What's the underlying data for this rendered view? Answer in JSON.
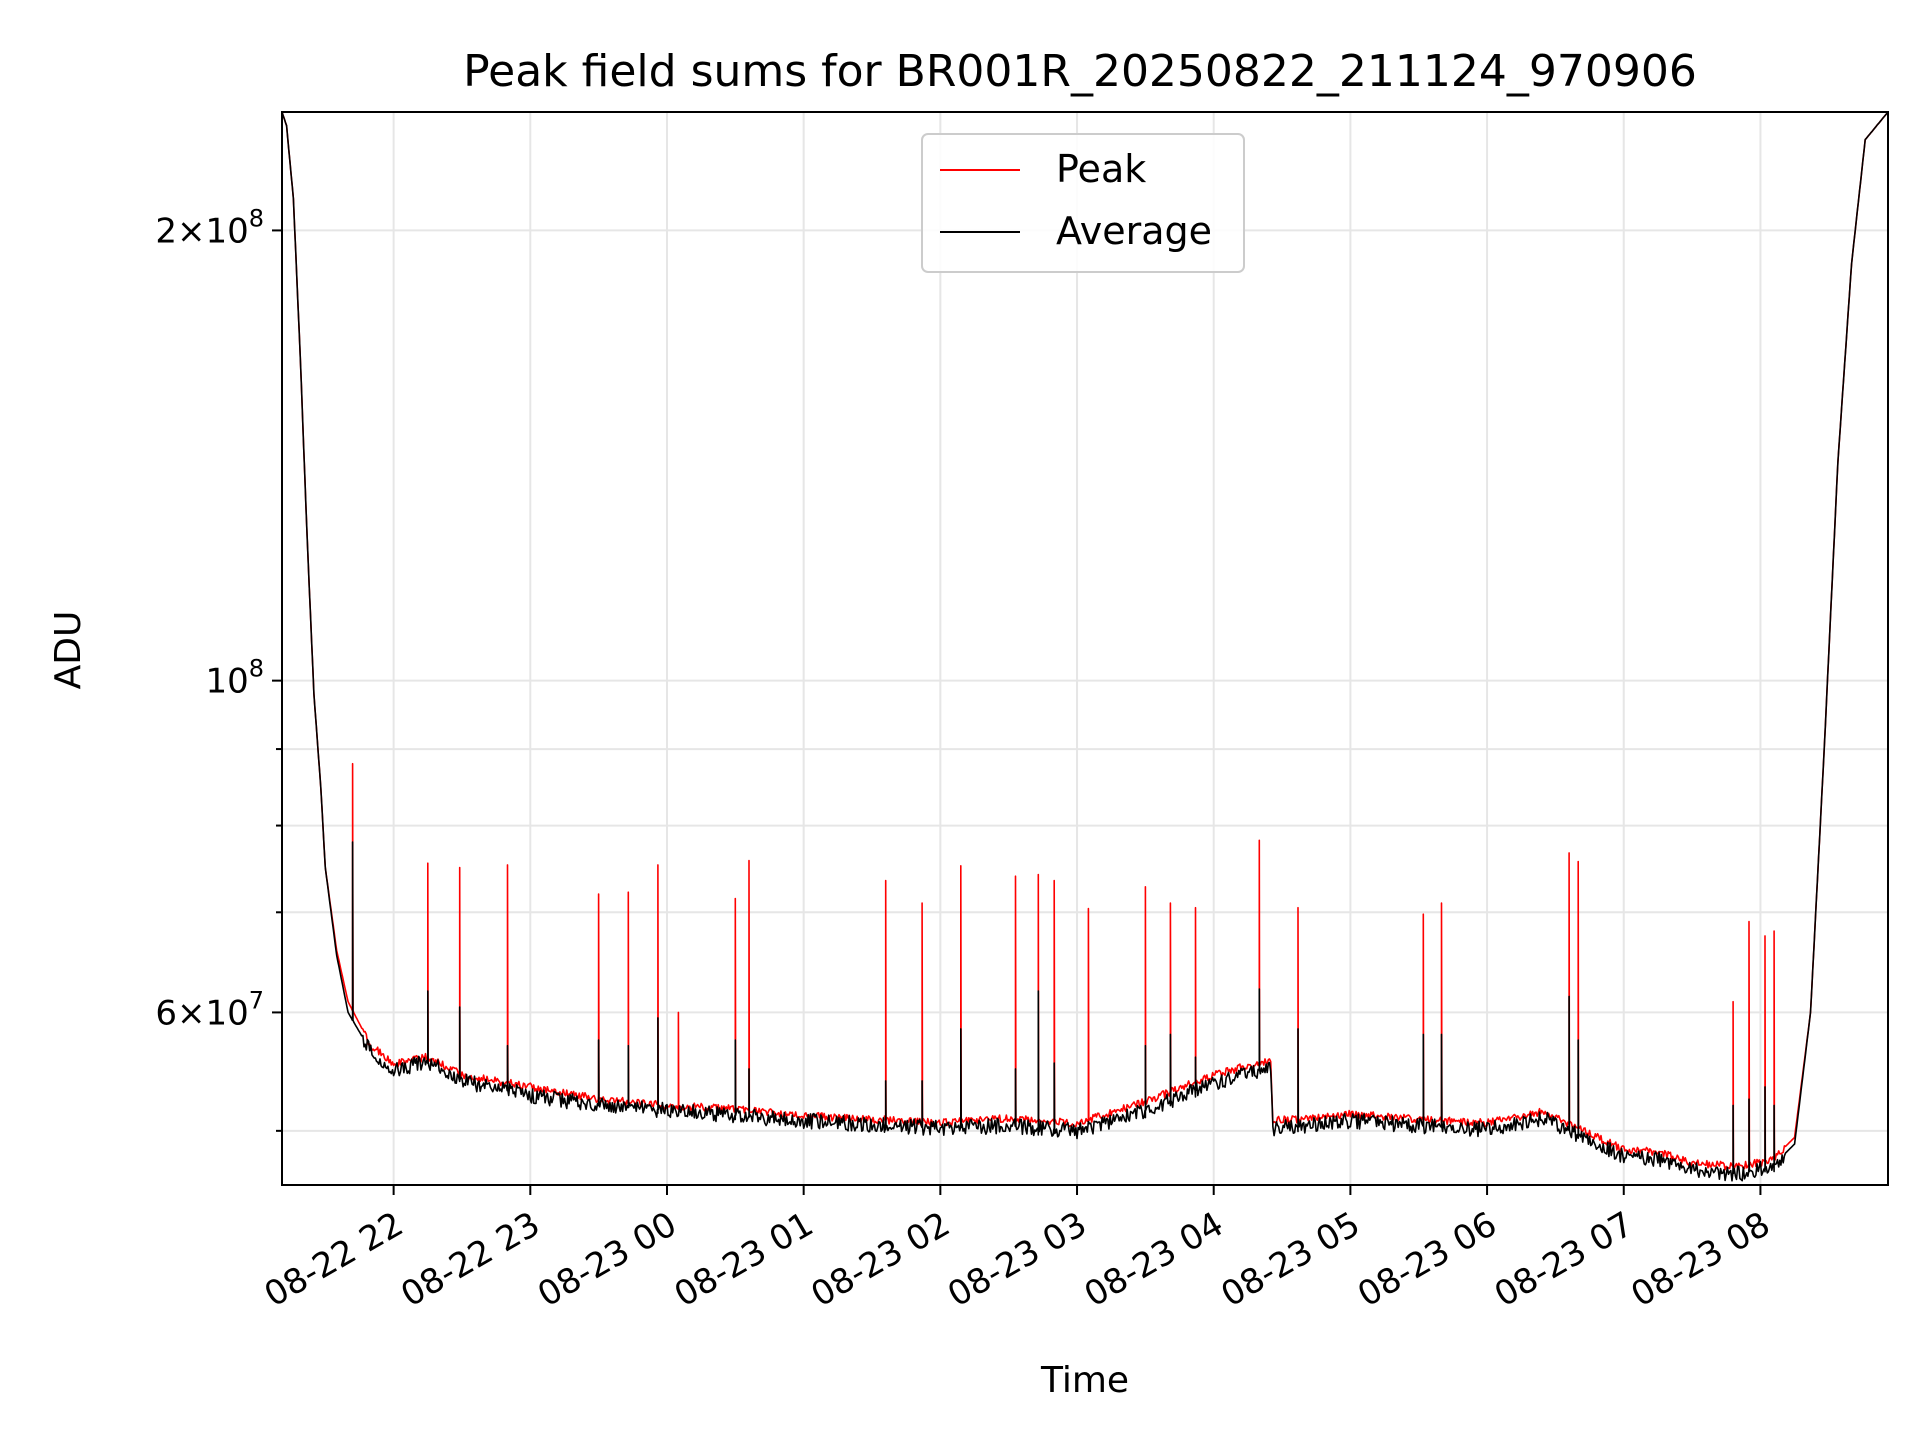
{
  "chart_data": {
    "type": "line",
    "title": "Peak field sums for BR001R_20250822_211124_970906",
    "xlabel": "Time",
    "ylabel": "ADU",
    "y_scale": "log",
    "grid": true,
    "legend_placement": "upper-center",
    "x_range": [
      "2025-08-22 21:11",
      "2025-08-23 08:56"
    ],
    "ylim": [
      46000000,
      240000000
    ],
    "x_ticks": [
      "08-22 22",
      "08-22 23",
      "08-23 00",
      "08-23 01",
      "08-23 02",
      "08-23 03",
      "08-23 04",
      "08-23 05",
      "08-23 06",
      "08-23 07",
      "08-23 08"
    ],
    "y_ticks": [
      {
        "value": 200000000,
        "mant": "2",
        "exp": "8"
      },
      {
        "value": 100000000,
        "mant": "",
        "exp": "8"
      },
      {
        "value": 60000000,
        "mant": "6",
        "exp": "7"
      }
    ],
    "colors": {
      "peak": "#ff0000",
      "average": "#000000",
      "grid": "#e6e6e6"
    },
    "series": [
      {
        "name": "Peak",
        "color": "#ff0000",
        "points": [
          [
            "2025-08-22 21:11",
            240000000
          ],
          [
            "2025-08-22 21:13",
            235000000
          ],
          [
            "2025-08-22 21:16",
            210000000
          ],
          [
            "2025-08-22 21:19",
            165000000
          ],
          [
            "2025-08-22 21:22",
            125000000
          ],
          [
            "2025-08-22 21:25",
            98000000
          ],
          [
            "2025-08-22 21:28",
            85000000
          ],
          [
            "2025-08-22 21:30",
            75000000
          ],
          [
            "2025-08-22 21:35",
            66000000
          ],
          [
            "2025-08-22 21:40",
            61000000
          ],
          [
            "2025-08-22 21:50",
            57000000
          ],
          [
            "2025-08-22 22:00",
            55500000
          ],
          [
            "2025-08-22 22:15",
            56000000
          ],
          [
            "2025-08-22 22:30",
            54500000
          ],
          [
            "2025-08-22 23:00",
            53500000
          ],
          [
            "2025-08-22 23:30",
            52500000
          ],
          [
            "2025-08-23 00:00",
            52000000
          ],
          [
            "2025-08-23 00:30",
            51700000
          ],
          [
            "2025-08-23 01:00",
            51200000
          ],
          [
            "2025-08-23 01:30",
            50900000
          ],
          [
            "2025-08-23 02:00",
            50600000
          ],
          [
            "2025-08-23 02:30",
            51000000
          ],
          [
            "2025-08-23 03:00",
            50600000
          ],
          [
            "2025-08-23 03:30",
            52300000
          ],
          [
            "2025-08-23 04:00",
            54500000
          ],
          [
            "2025-08-23 04:25",
            55800000
          ],
          [
            "2025-08-23 04:26",
            50800000
          ],
          [
            "2025-08-23 04:45",
            51000000
          ],
          [
            "2025-08-23 05:00",
            51300000
          ],
          [
            "2025-08-23 05:30",
            50900000
          ],
          [
            "2025-08-23 06:00",
            50600000
          ],
          [
            "2025-08-23 06:25",
            51500000
          ],
          [
            "2025-08-23 06:45",
            49800000
          ],
          [
            "2025-08-23 07:00",
            48600000
          ],
          [
            "2025-08-23 07:15",
            48400000
          ],
          [
            "2025-08-23 07:30",
            47600000
          ],
          [
            "2025-08-23 07:50",
            47300000
          ],
          [
            "2025-08-23 08:05",
            47800000
          ],
          [
            "2025-08-23 08:15",
            49500000
          ],
          [
            "2025-08-23 08:22",
            60000000
          ],
          [
            "2025-08-23 08:28",
            90000000
          ],
          [
            "2025-08-23 08:34",
            140000000
          ],
          [
            "2025-08-23 08:40",
            190000000
          ],
          [
            "2025-08-23 08:46",
            230000000
          ],
          [
            "2025-08-23 08:56",
            240000000
          ]
        ],
        "spikes": [
          [
            "2025-08-22 21:42",
            88000000
          ],
          [
            "2025-08-22 22:15",
            75500000
          ],
          [
            "2025-08-22 22:29",
            75000000
          ],
          [
            "2025-08-22 22:50",
            75300000
          ],
          [
            "2025-08-22 23:30",
            72000000
          ],
          [
            "2025-08-22 23:43",
            72200000
          ],
          [
            "2025-08-22 23:56",
            75300000
          ],
          [
            "2025-08-23 00:05",
            60000000
          ],
          [
            "2025-08-23 00:30",
            71500000
          ],
          [
            "2025-08-23 00:36",
            75800000
          ],
          [
            "2025-08-23 01:36",
            73500000
          ],
          [
            "2025-08-23 01:52",
            71000000
          ],
          [
            "2025-08-23 02:09",
            75200000
          ],
          [
            "2025-08-23 02:33",
            74000000
          ],
          [
            "2025-08-23 02:43",
            74200000
          ],
          [
            "2025-08-23 02:50",
            73500000
          ],
          [
            "2025-08-23 03:05",
            70400000
          ],
          [
            "2025-08-23 03:30",
            72800000
          ],
          [
            "2025-08-23 03:41",
            71000000
          ],
          [
            "2025-08-23 03:52",
            70500000
          ],
          [
            "2025-08-23 04:20",
            78200000
          ],
          [
            "2025-08-23 04:37",
            70500000
          ],
          [
            "2025-08-23 05:32",
            69800000
          ],
          [
            "2025-08-23 05:40",
            71000000
          ],
          [
            "2025-08-23 06:36",
            76700000
          ],
          [
            "2025-08-23 06:40",
            75700000
          ],
          [
            "2025-08-23 07:48",
            61000000
          ],
          [
            "2025-08-23 07:55",
            69000000
          ],
          [
            "2025-08-23 08:02",
            67500000
          ],
          [
            "2025-08-23 08:06",
            68000000
          ]
        ]
      },
      {
        "name": "Average",
        "color": "#000000",
        "points": [
          [
            "2025-08-22 21:11",
            240000000
          ],
          [
            "2025-08-22 21:13",
            235000000
          ],
          [
            "2025-08-22 21:16",
            210000000
          ],
          [
            "2025-08-22 21:19",
            165000000
          ],
          [
            "2025-08-22 21:22",
            125000000
          ],
          [
            "2025-08-22 21:25",
            98000000
          ],
          [
            "2025-08-22 21:28",
            85000000
          ],
          [
            "2025-08-22 21:30",
            75000000
          ],
          [
            "2025-08-22 21:35",
            65500000
          ],
          [
            "2025-08-22 21:40",
            60000000
          ],
          [
            "2025-08-22 21:50",
            56500000
          ],
          [
            "2025-08-22 22:00",
            55000000
          ],
          [
            "2025-08-22 22:15",
            55600000
          ],
          [
            "2025-08-22 22:30",
            54000000
          ],
          [
            "2025-08-22 23:00",
            52800000
          ],
          [
            "2025-08-22 23:30",
            52000000
          ],
          [
            "2025-08-23 00:00",
            51600000
          ],
          [
            "2025-08-23 00:30",
            51200000
          ],
          [
            "2025-08-23 01:00",
            50800000
          ],
          [
            "2025-08-23 01:30",
            50500000
          ],
          [
            "2025-08-23 02:00",
            50200000
          ],
          [
            "2025-08-23 02:30",
            50400000
          ],
          [
            "2025-08-23 03:00",
            50000000
          ],
          [
            "2025-08-23 03:30",
            51600000
          ],
          [
            "2025-08-23 04:00",
            53800000
          ],
          [
            "2025-08-23 04:25",
            55200000
          ],
          [
            "2025-08-23 04:26",
            50200000
          ],
          [
            "2025-08-23 04:45",
            50500000
          ],
          [
            "2025-08-23 05:00",
            50800000
          ],
          [
            "2025-08-23 05:30",
            50400000
          ],
          [
            "2025-08-23 06:00",
            50100000
          ],
          [
            "2025-08-23 06:25",
            51000000
          ],
          [
            "2025-08-23 06:45",
            49300000
          ],
          [
            "2025-08-23 07:00",
            48100000
          ],
          [
            "2025-08-23 07:15",
            47900000
          ],
          [
            "2025-08-23 07:30",
            47100000
          ],
          [
            "2025-08-23 07:50",
            46800000
          ],
          [
            "2025-08-23 08:05",
            47300000
          ],
          [
            "2025-08-23 08:15",
            49000000
          ],
          [
            "2025-08-23 08:22",
            60000000
          ],
          [
            "2025-08-23 08:28",
            90000000
          ],
          [
            "2025-08-23 08:34",
            140000000
          ],
          [
            "2025-08-23 08:40",
            190000000
          ],
          [
            "2025-08-23 08:46",
            230000000
          ],
          [
            "2025-08-23 08:56",
            240000000
          ]
        ],
        "spikes": [
          [
            "2025-08-22 21:42",
            78000000
          ],
          [
            "2025-08-22 22:15",
            62000000
          ],
          [
            "2025-08-22 22:29",
            60500000
          ],
          [
            "2025-08-22 22:50",
            57000000
          ],
          [
            "2025-08-22 23:30",
            57500000
          ],
          [
            "2025-08-22 23:43",
            57000000
          ],
          [
            "2025-08-22 23:56",
            59500000
          ],
          [
            "2025-08-23 00:30",
            57500000
          ],
          [
            "2025-08-23 00:36",
            55000000
          ],
          [
            "2025-08-23 01:36",
            54000000
          ],
          [
            "2025-08-23 01:52",
            54000000
          ],
          [
            "2025-08-23 02:09",
            58500000
          ],
          [
            "2025-08-23 02:33",
            55000000
          ],
          [
            "2025-08-23 02:43",
            62000000
          ],
          [
            "2025-08-23 02:50",
            55500000
          ],
          [
            "2025-08-23 03:30",
            57000000
          ],
          [
            "2025-08-23 03:41",
            58000000
          ],
          [
            "2025-08-23 03:52",
            56000000
          ],
          [
            "2025-08-23 04:20",
            62200000
          ],
          [
            "2025-08-23 04:37",
            58500000
          ],
          [
            "2025-08-23 05:32",
            58000000
          ],
          [
            "2025-08-23 05:40",
            58000000
          ],
          [
            "2025-08-23 06:36",
            61500000
          ],
          [
            "2025-08-23 06:40",
            57500000
          ],
          [
            "2025-08-23 07:48",
            52000000
          ],
          [
            "2025-08-23 07:55",
            52500000
          ],
          [
            "2025-08-23 08:02",
            53500000
          ],
          [
            "2025-08-23 08:06",
            52000000
          ]
        ]
      }
    ]
  }
}
